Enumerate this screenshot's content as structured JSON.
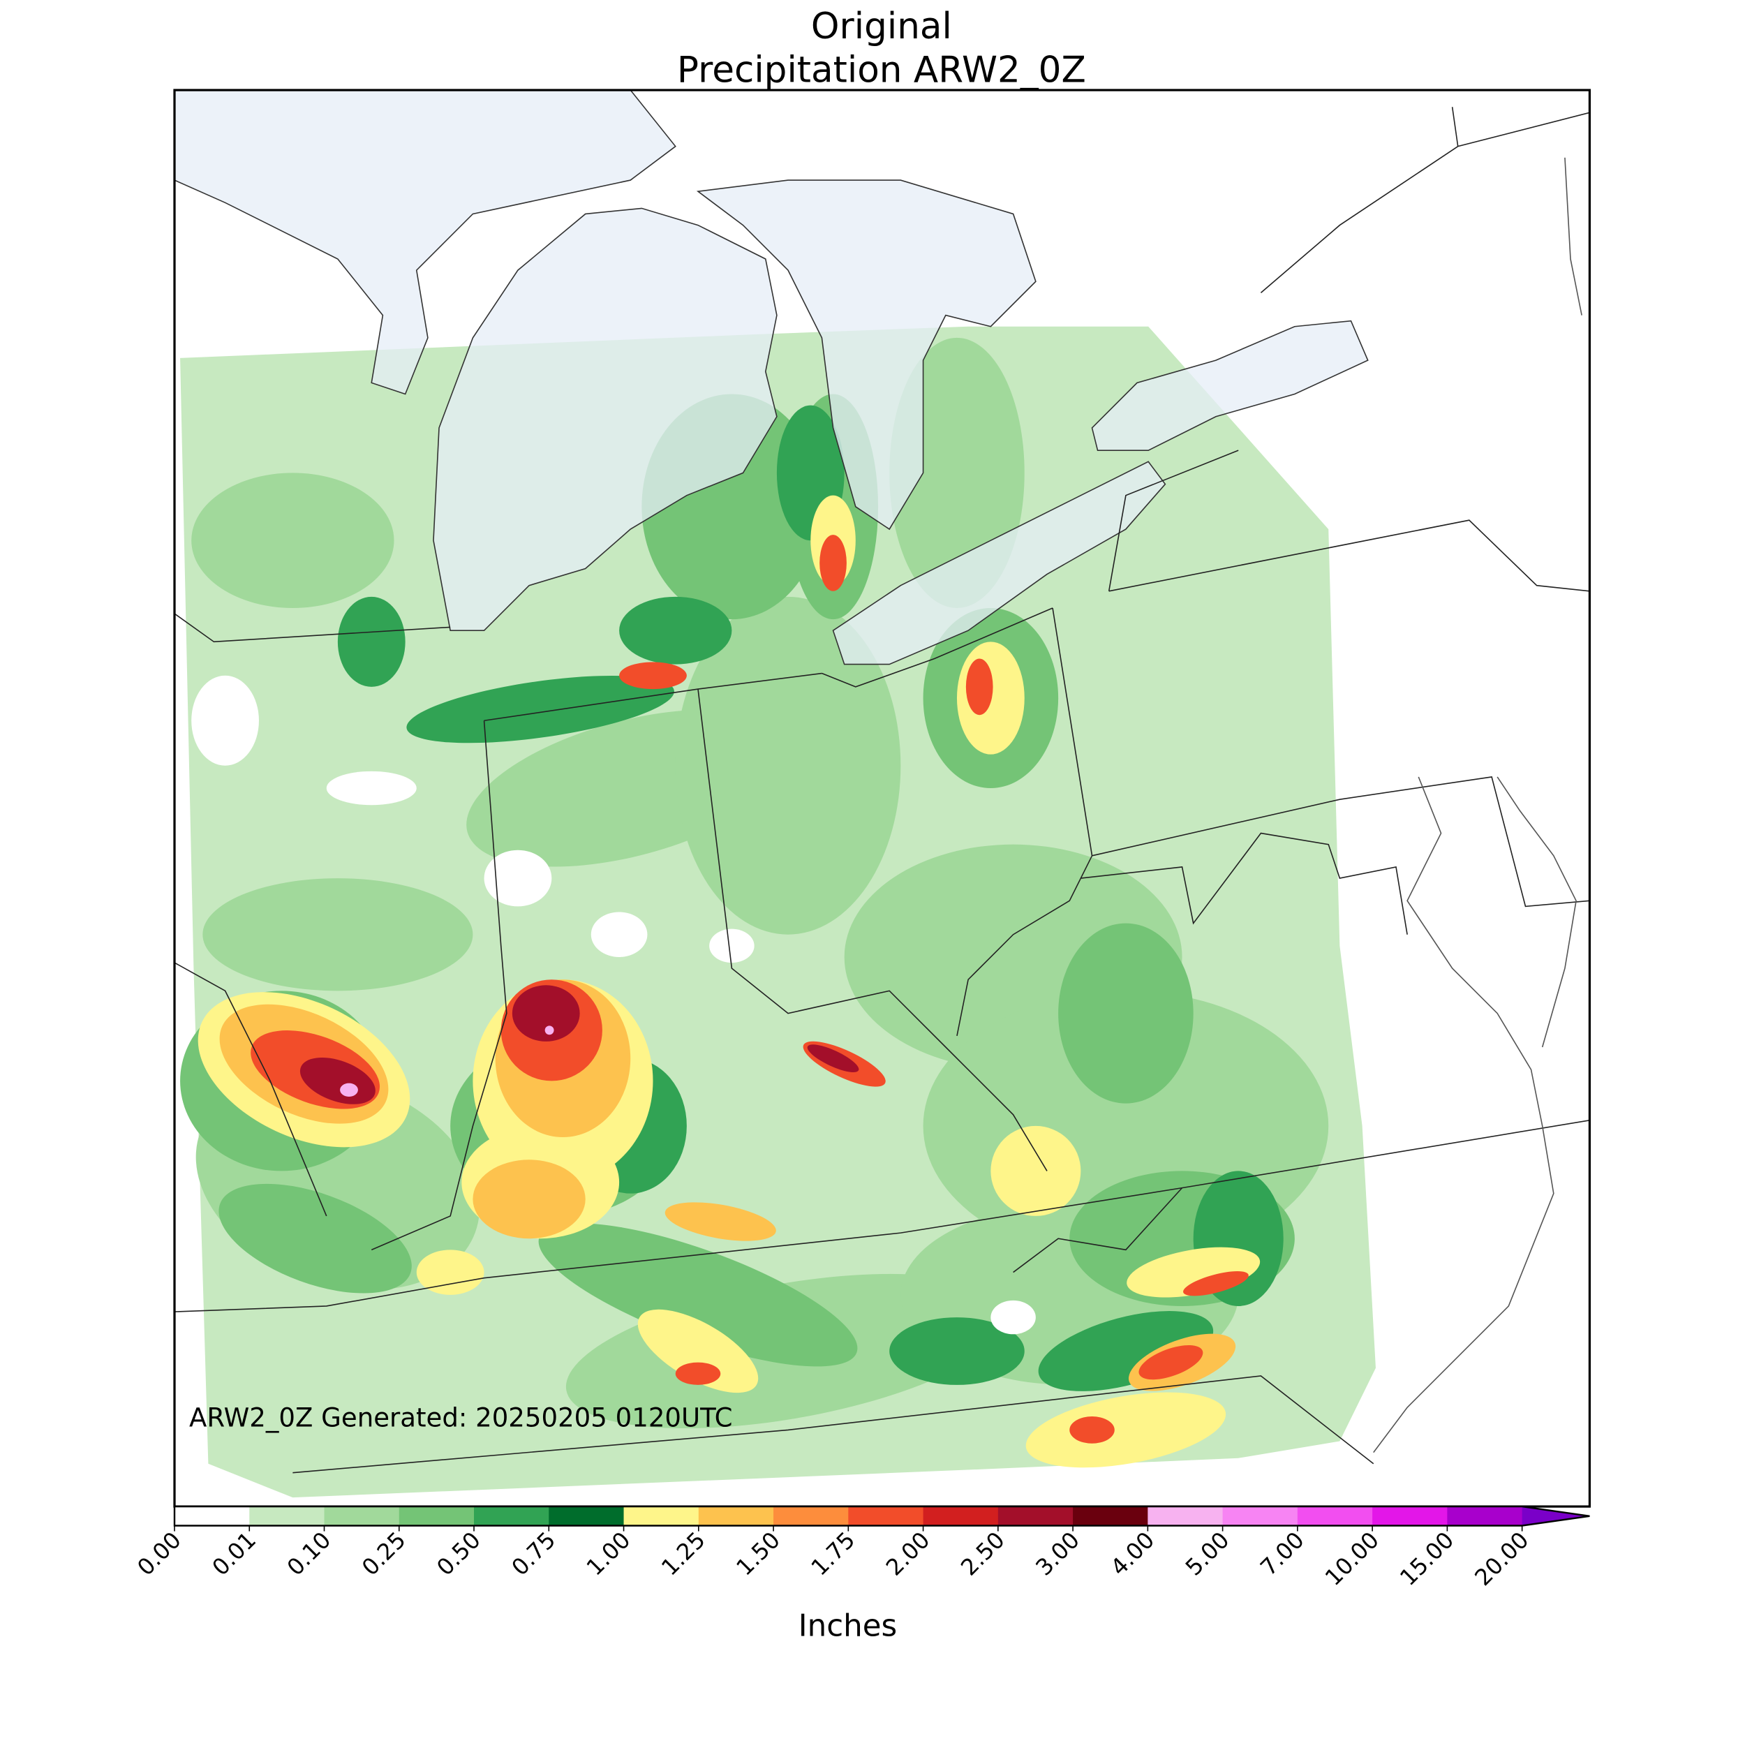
{
  "title": [
    "Original",
    "Precipitation ARW2_0Z"
  ],
  "annotation": "ARW2_0Z Generated: 20250205 0120UTC",
  "colorbar": {
    "label": "Inches",
    "ticks": [
      {
        "value": 0,
        "label": "0.00"
      },
      {
        "value": 0.01,
        "label": "0.01"
      },
      {
        "value": 0.1,
        "label": "0.10"
      },
      {
        "value": 0.25,
        "label": "0.25"
      },
      {
        "value": 0.5,
        "label": "0.50"
      },
      {
        "value": 0.75,
        "label": "0.75"
      },
      {
        "value": 1,
        "label": "1.00"
      },
      {
        "value": 1.25,
        "label": "1.25"
      },
      {
        "value": 1.5,
        "label": "1.50"
      },
      {
        "value": 1.75,
        "label": "1.75"
      },
      {
        "value": 2,
        "label": "2.00"
      },
      {
        "value": 2.5,
        "label": "2.50"
      },
      {
        "value": 3,
        "label": "3.00"
      },
      {
        "value": 4,
        "label": "4.00"
      },
      {
        "value": 5,
        "label": "5.00"
      },
      {
        "value": 7,
        "label": "7.00"
      },
      {
        "value": 10,
        "label": "10.00"
      },
      {
        "value": 15,
        "label": "15.00"
      },
      {
        "value": 20,
        "label": "20.00"
      }
    ],
    "colors": [
      "#ffffff",
      "#c7e9c0",
      "#a1d99b",
      "#74c476",
      "#31a354",
      "#006d2c",
      "#fef58a",
      "#fdc24e",
      "#fd8d3c",
      "#f24d2a",
      "#d21f1f",
      "#a30f2a",
      "#6a000e",
      "#f7b2f0",
      "#f784f3",
      "#f24ef0",
      "#e316e8",
      "#a800cc"
    ],
    "extend_color": "#7a00c8"
  }
}
